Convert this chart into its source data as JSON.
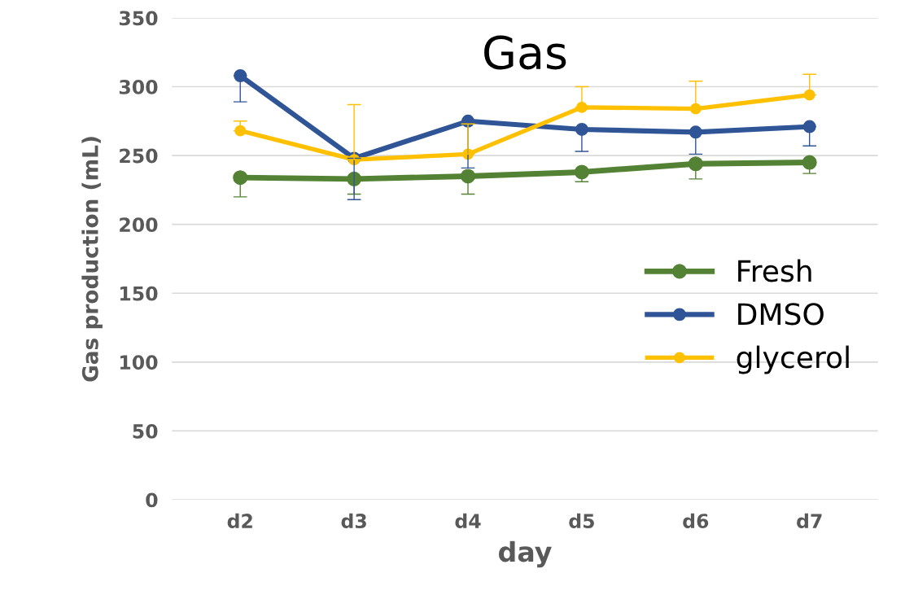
{
  "chart_data": {
    "type": "line",
    "title": "Gas",
    "xlabel": "day",
    "ylabel": "Gas production (mL)",
    "categories": [
      "d2",
      "d3",
      "d4",
      "d5",
      "d6",
      "d7"
    ],
    "series": [
      {
        "name": "Fresh",
        "color": "#548235",
        "values": [
          234,
          233,
          235,
          238,
          244,
          245
        ],
        "errors": [
          [
            220,
            234
          ],
          [
            222,
            233
          ],
          [
            222,
            235
          ],
          [
            231,
            238
          ],
          [
            233,
            244
          ],
          [
            237,
            245
          ]
        ]
      },
      {
        "name": "DMSO",
        "color": "#2f5597",
        "values": [
          308,
          248,
          275,
          269,
          267,
          271
        ],
        "errors": [
          [
            289,
            308
          ],
          [
            218,
            248
          ],
          [
            241,
            275
          ],
          [
            253,
            269
          ],
          [
            251,
            267
          ],
          [
            257,
            271
          ]
        ]
      },
      {
        "name": "glycerol",
        "color": "#ffc000",
        "values": [
          268,
          247,
          251,
          285,
          284,
          294
        ],
        "errors": [
          [
            268,
            275
          ],
          [
            247,
            287
          ],
          [
            251,
            273
          ],
          [
            285,
            300
          ],
          [
            284,
            304
          ],
          [
            294,
            309
          ]
        ]
      }
    ],
    "ylim": [
      0,
      350
    ],
    "yticks": [
      0,
      50,
      100,
      150,
      200,
      250,
      300,
      350
    ],
    "grid": "y",
    "legend": "right",
    "marker": "circle",
    "line_style": "solid"
  }
}
